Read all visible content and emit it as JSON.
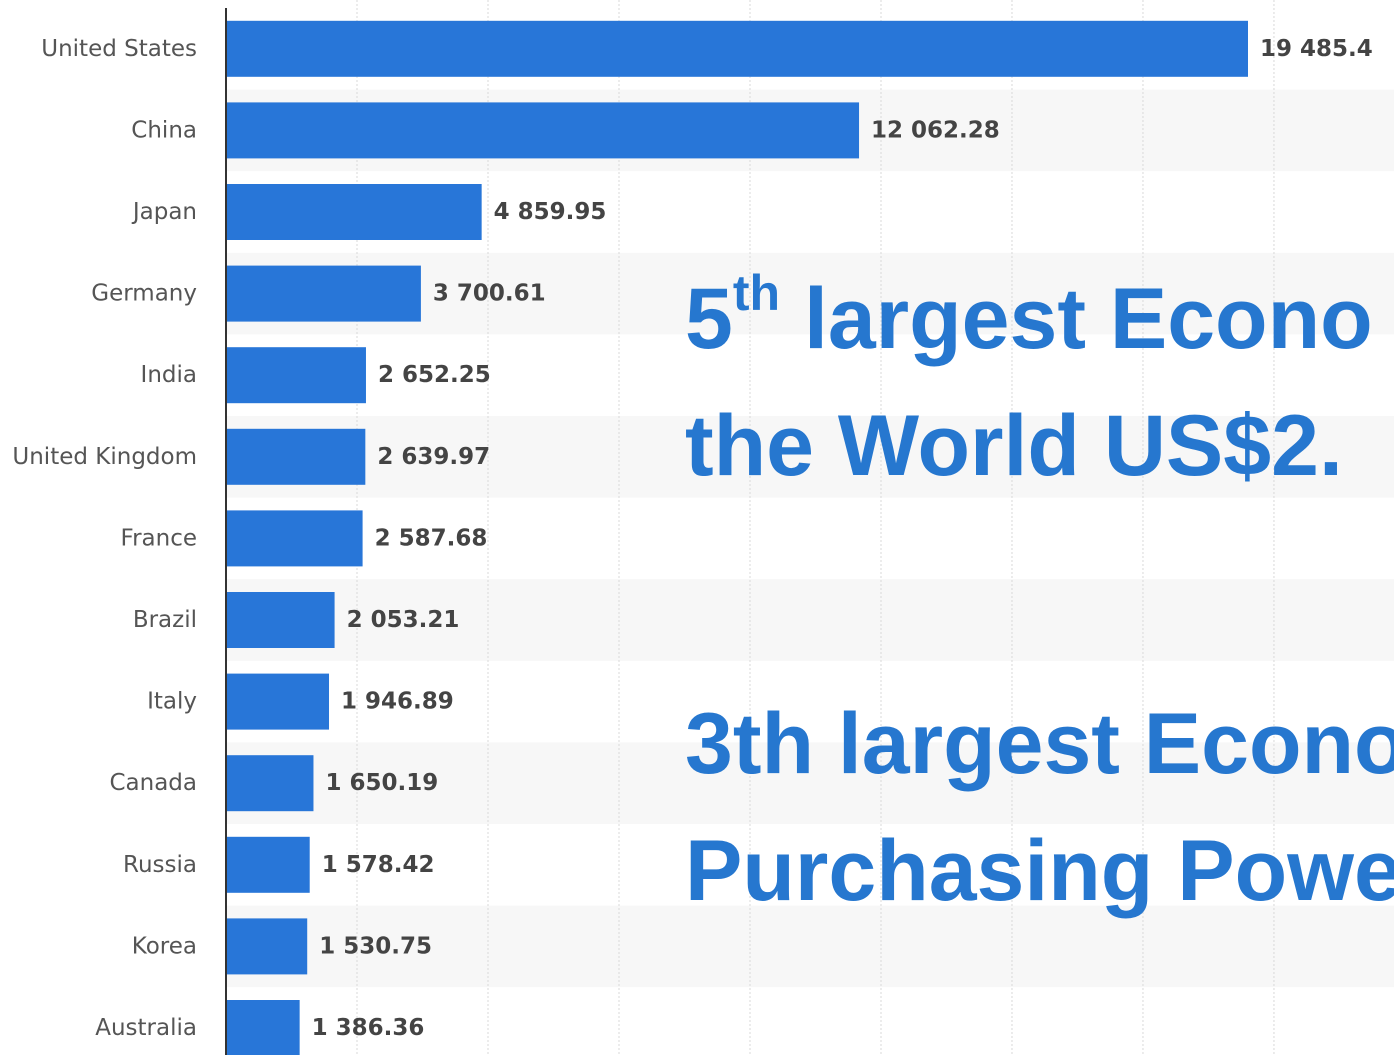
{
  "chart_data": {
    "type": "bar",
    "orientation": "horizontal",
    "categories": [
      "United States",
      "China",
      "Japan",
      "Germany",
      "India",
      "United Kingdom",
      "France",
      "Brazil",
      "Italy",
      "Canada",
      "Russia",
      "Korea",
      "Australia"
    ],
    "values": [
      19485.4,
      12062.28,
      4859.95,
      3700.61,
      2652.25,
      2639.97,
      2587.68,
      2053.21,
      1946.89,
      1650.19,
      1578.42,
      1530.75,
      1386.36
    ],
    "value_labels": [
      "19 485.4",
      "12 062.28",
      "4 859.95",
      "3 700.61",
      "2 652.25",
      "2 639.97",
      "2 587.68",
      "2 053.21",
      "1 946.89",
      "1 650.19",
      "1 578.42",
      "1 530.75",
      "1 386.36"
    ],
    "title": "",
    "xlabel": "",
    "ylabel": "",
    "xlim": [
      0,
      20000
    ],
    "grid": true,
    "bar_color": "#2876d8",
    "stripe_color": "#f7f7f7",
    "grid_color": "#d9d9d9"
  },
  "overlay": {
    "line1_prefix": "5",
    "line1_sup": "th",
    "line1_rest": " largest Econo",
    "line2": "the World US$2.",
    "line3": "3th largest Econo",
    "line4": "Purchasing Powe",
    "color": "#2677cf"
  }
}
